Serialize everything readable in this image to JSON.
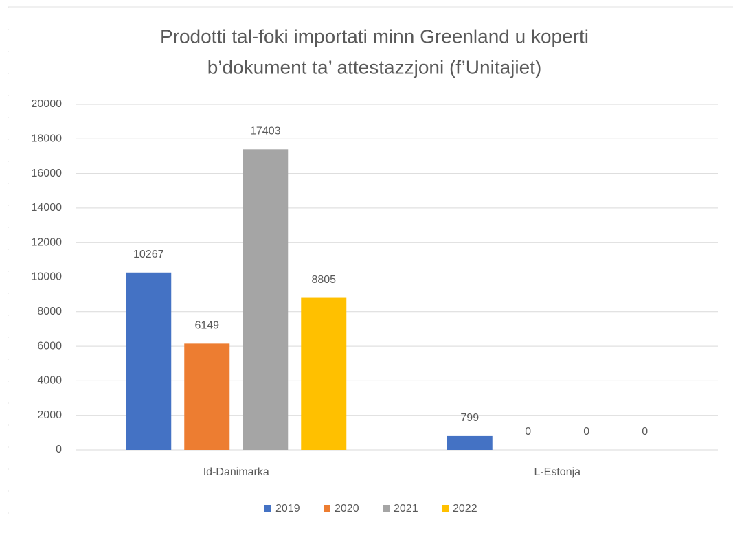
{
  "chart_data": {
    "type": "bar",
    "title": [
      "Prodotti tal-foki importati minn Greenland u koperti",
      "b’dokument ta’ attestazzjoni (f’Unitajiet)"
    ],
    "categories": [
      "Id-Danimarka",
      "L-Estonja"
    ],
    "series": [
      {
        "name": "2019",
        "color": "#4472c4",
        "values": [
          10267,
          799
        ]
      },
      {
        "name": "2020",
        "color": "#ed7d31",
        "values": [
          6149,
          0
        ]
      },
      {
        "name": "2021",
        "color": "#a5a5a5",
        "values": [
          17403,
          0
        ]
      },
      {
        "name": "2022",
        "color": "#ffc000",
        "values": [
          8805,
          0
        ]
      }
    ],
    "ylim": [
      0,
      20000
    ],
    "yticks": [
      0,
      2000,
      4000,
      6000,
      8000,
      10000,
      12000,
      14000,
      16000,
      18000,
      20000
    ],
    "grid": true,
    "legend": "bottom"
  }
}
